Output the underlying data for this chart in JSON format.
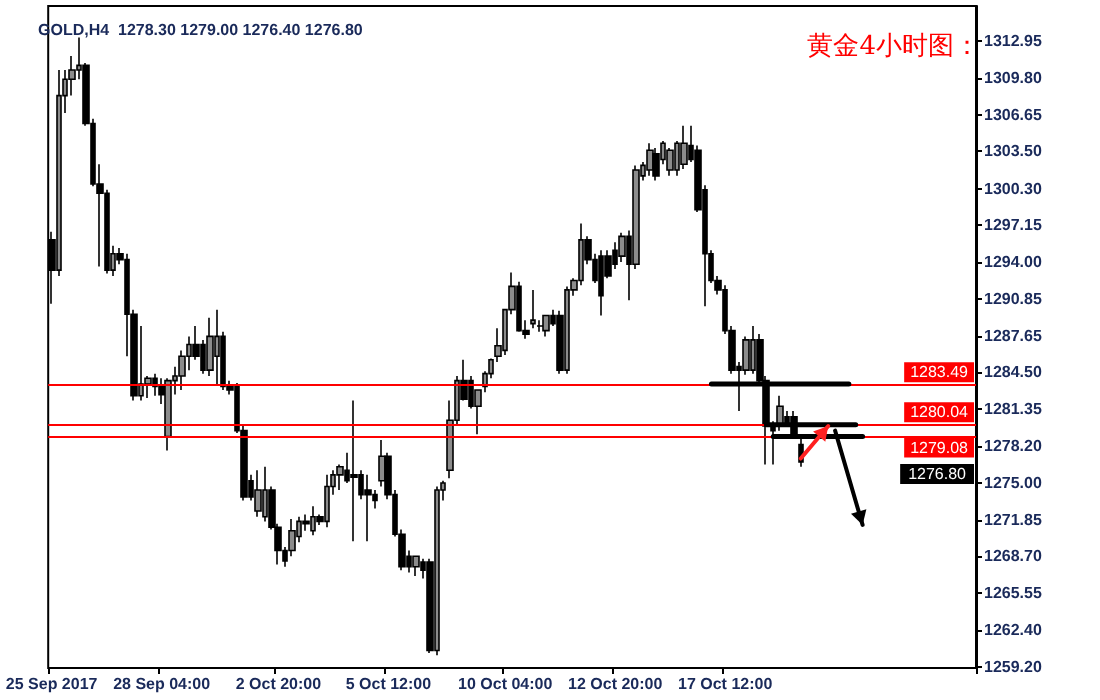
{
  "chart_data": {
    "type": "candlestick",
    "title": "黄金4小时图：",
    "subtitle": "GOLD,H4  1278.30 1279.00 1276.40 1276.80",
    "categories": [
      "25 Sep 2017",
      null,
      null,
      null,
      null,
      null,
      null,
      null,
      null,
      null,
      null,
      null,
      null,
      null,
      null,
      null,
      "28 Sep 04:00",
      null,
      null,
      null,
      null,
      null,
      null,
      null,
      null,
      null,
      null,
      null,
      null,
      null,
      null,
      null,
      null,
      "2 Oct 20:00",
      null,
      null,
      null,
      null,
      null,
      null,
      null,
      null,
      null,
      null,
      null,
      null,
      null,
      null,
      null,
      "5 Oct 12:00",
      null,
      null,
      null,
      null,
      null,
      null,
      null,
      null,
      null,
      null,
      null,
      null,
      null,
      null,
      null,
      null,
      "10 Oct 04:00",
      null,
      null,
      null,
      null,
      null,
      null,
      null,
      null,
      null,
      null,
      null,
      null,
      null,
      null,
      null,
      "12 Oct 20:00",
      null,
      null,
      null,
      null,
      null,
      null,
      null,
      null,
      null,
      null,
      null,
      null,
      null,
      null,
      null,
      "17 Oct 12:00",
      null,
      null,
      null,
      null,
      null,
      null,
      null,
      null,
      null,
      null,
      null,
      null,
      null,
      null,
      null,
      null,
      null,
      null,
      null,
      null,
      null,
      null,
      null,
      null,
      null,
      null,
      null,
      null,
      null,
      null,
      null,
      null,
      null,
      null,
      null,
      null
    ],
    "ohlc": [
      [
        1295.9,
        1296.6,
        1290.4,
        1293.3
      ],
      [
        1293.3,
        1310.5,
        1292.8,
        1308.3
      ],
      [
        1308.3,
        1310.5,
        1306.8,
        1309.7
      ],
      [
        1309.7,
        1311.7,
        1308.3,
        1310.5
      ],
      [
        1310.5,
        1313.3,
        1309.7,
        1310.9
      ],
      [
        1310.9,
        1311.1,
        1305.7,
        1305.9
      ],
      [
        1305.9,
        1306.3,
        1300.5,
        1300.7
      ],
      [
        1300.7,
        1302.4,
        1293.6,
        1299.9
      ],
      [
        1299.9,
        1300.2,
        1293.0,
        1293.3
      ],
      [
        1293.3,
        1295.4,
        1292.8,
        1294.7
      ],
      [
        1294.7,
        1295.2,
        1293.8,
        1294.2
      ],
      [
        1294.2,
        1294.7,
        1285.9,
        1289.5
      ],
      [
        1289.5,
        1289.9,
        1282.1,
        1282.5
      ],
      [
        1282.5,
        1288.5,
        1282.1,
        1283.5
      ],
      [
        1283.5,
        1284.2,
        1282.3,
        1284.0
      ],
      [
        1284.0,
        1284.4,
        1282.5,
        1283.3
      ],
      [
        1283.3,
        1284.0,
        1281.8,
        1282.6
      ],
      [
        1279.0,
        1284.0,
        1277.8,
        1283.8
      ],
      [
        1283.8,
        1285.0,
        1282.6,
        1284.2
      ],
      [
        1284.2,
        1286.4,
        1283.0,
        1285.9
      ],
      [
        1285.9,
        1287.6,
        1284.7,
        1286.9
      ],
      [
        1286.9,
        1288.5,
        1285.6,
        1285.9
      ],
      [
        1286.9,
        1287.3,
        1284.4,
        1284.7
      ],
      [
        1284.7,
        1289.2,
        1284.2,
        1287.6
      ],
      [
        1285.9,
        1289.9,
        1283.5,
        1287.6
      ],
      [
        1287.6,
        1288.0,
        1283.0,
        1283.3
      ],
      [
        1283.3,
        1283.8,
        1282.6,
        1283.0
      ],
      [
        1283.3,
        1283.6,
        1279.3,
        1279.5
      ],
      [
        1279.5,
        1279.9,
        1273.5,
        1273.8
      ],
      [
        1275.2,
        1275.7,
        1273.5,
        1273.8
      ],
      [
        1272.6,
        1276.1,
        1272.1,
        1274.4
      ],
      [
        1272.1,
        1276.4,
        1271.7,
        1274.4
      ],
      [
        1274.4,
        1274.7,
        1271.0,
        1271.2
      ],
      [
        1271.2,
        1271.5,
        1268.0,
        1269.2
      ],
      [
        1269.2,
        1269.5,
        1267.8,
        1268.3
      ],
      [
        1269.2,
        1271.9,
        1268.7,
        1270.9
      ],
      [
        1270.4,
        1272.1,
        1269.9,
        1271.7
      ],
      [
        1271.7,
        1272.3,
        1270.9,
        1271.5
      ],
      [
        1270.9,
        1273.0,
        1270.5,
        1272.1
      ],
      [
        1272.1,
        1272.3,
        1271.4,
        1271.7
      ],
      [
        1271.7,
        1275.7,
        1271.2,
        1274.7
      ],
      [
        1274.7,
        1276.1,
        1274.0,
        1275.7
      ],
      [
        1275.7,
        1276.6,
        1274.4,
        1276.4
      ],
      [
        1276.1,
        1277.6,
        1275.0,
        1275.2
      ],
      [
        1275.7,
        1282.1,
        1270.0,
        1275.5
      ],
      [
        1275.7,
        1276.1,
        1273.6,
        1274.0
      ],
      [
        1274.4,
        1275.7,
        1270.0,
        1274.0
      ],
      [
        1274.0,
        1274.4,
        1272.8,
        1273.5
      ],
      [
        1275.2,
        1278.7,
        1274.7,
        1277.3
      ],
      [
        1277.3,
        1277.6,
        1273.6,
        1274.0
      ],
      [
        1274.0,
        1274.4,
        1270.4,
        1270.6
      ],
      [
        1270.6,
        1271.0,
        1267.5,
        1267.8
      ],
      [
        1268.7,
        1269.2,
        1267.3,
        1267.8
      ],
      [
        1267.8,
        1268.7,
        1267.0,
        1268.7
      ],
      [
        1268.2,
        1268.5,
        1266.8,
        1267.5
      ],
      [
        1268.2,
        1268.5,
        1260.4,
        1260.6
      ],
      [
        1260.6,
        1274.7,
        1260.2,
        1274.4
      ],
      [
        1274.4,
        1275.2,
        1273.5,
        1275.0
      ],
      [
        1276.1,
        1282.1,
        1275.4,
        1280.4
      ],
      [
        1280.4,
        1284.2,
        1279.9,
        1283.8
      ],
      [
        1283.8,
        1285.6,
        1282.1,
        1282.2
      ],
      [
        1283.8,
        1284.2,
        1281.4,
        1281.6
      ],
      [
        1281.6,
        1283.0,
        1279.2,
        1283.0
      ],
      [
        1283.3,
        1284.6,
        1282.8,
        1284.4
      ],
      [
        1284.4,
        1285.7,
        1284.0,
        1285.6
      ],
      [
        1285.9,
        1288.3,
        1285.4,
        1286.8
      ],
      [
        1286.4,
        1289.9,
        1286.0,
        1289.9
      ],
      [
        1289.9,
        1293.1,
        1289.5,
        1291.9
      ],
      [
        1291.9,
        1292.3,
        1288.0,
        1288.1
      ],
      [
        1288.1,
        1289.0,
        1287.4,
        1287.8
      ],
      [
        1288.7,
        1291.6,
        1288.3,
        1289.0
      ],
      [
        1288.5,
        1289.0,
        1288.0,
        1288.5
      ],
      [
        1288.1,
        1289.4,
        1287.6,
        1289.4
      ],
      [
        1289.4,
        1289.9,
        1288.5,
        1288.7
      ],
      [
        1289.4,
        1289.8,
        1284.4,
        1284.7
      ],
      [
        1284.7,
        1291.9,
        1284.4,
        1291.6
      ],
      [
        1291.6,
        1292.6,
        1291.1,
        1292.4
      ],
      [
        1292.4,
        1297.3,
        1292.0,
        1295.9
      ],
      [
        1295.9,
        1296.2,
        1293.8,
        1294.2
      ],
      [
        1294.2,
        1294.7,
        1292.2,
        1292.4
      ],
      [
        1294.5,
        1295.0,
        1289.4,
        1291.1
      ],
      [
        1294.5,
        1295.0,
        1292.6,
        1292.8
      ],
      [
        1295.0,
        1295.7,
        1293.4,
        1293.8
      ],
      [
        1294.5,
        1296.5,
        1294.0,
        1296.2
      ],
      [
        1296.2,
        1296.7,
        1290.7,
        1293.8
      ],
      [
        1293.8,
        1302.3,
        1293.4,
        1301.9
      ],
      [
        1301.4,
        1302.6,
        1301.0,
        1302.3
      ],
      [
        1301.9,
        1304.2,
        1301.4,
        1303.6
      ],
      [
        1303.3,
        1303.8,
        1301.0,
        1301.4
      ],
      [
        1302.8,
        1304.4,
        1302.4,
        1304.2
      ],
      [
        1301.9,
        1303.8,
        1301.4,
        1303.6
      ],
      [
        1301.9,
        1304.4,
        1301.4,
        1304.2
      ],
      [
        1302.4,
        1305.7,
        1302.0,
        1304.2
      ],
      [
        1304.0,
        1305.7,
        1302.6,
        1302.8
      ],
      [
        1303.6,
        1304.0,
        1298.3,
        1298.5
      ],
      [
        1300.2,
        1300.6,
        1290.2,
        1294.7
      ],
      [
        1294.7,
        1295.0,
        1292.2,
        1292.4
      ],
      [
        1292.4,
        1292.8,
        1291.2,
        1291.6
      ],
      [
        1291.6,
        1292.0,
        1287.8,
        1288.1
      ],
      [
        1288.1,
        1288.5,
        1284.4,
        1284.7
      ],
      [
        1285.0,
        1285.4,
        1281.2,
        1284.7
      ],
      [
        1284.7,
        1287.6,
        1284.3,
        1287.3
      ],
      [
        1284.7,
        1288.5,
        1284.4,
        1287.3
      ],
      [
        1287.3,
        1287.8,
        1283.5,
        1283.8
      ],
      [
        1283.8,
        1284.2,
        1276.6,
        1279.9
      ],
      [
        1279.9,
        1280.3,
        1276.6,
        1279.5
      ],
      [
        1279.9,
        1282.5,
        1279.5,
        1281.6
      ],
      [
        1280.7,
        1281.2,
        1279.9,
        1279.9
      ],
      [
        1280.7,
        1281.2,
        1278.8,
        1279.0
      ],
      [
        1278.3,
        1279.0,
        1276.4,
        1276.8
      ],
      null,
      null,
      null,
      null,
      null,
      null,
      null,
      null,
      null,
      null,
      null,
      null,
      null,
      null,
      null,
      null,
      null,
      null,
      null,
      null,
      null,
      null,
      null,
      null,
      null
    ],
    "ylim": [
      1259.1,
      1316.0
    ],
    "yticks": [
      {
        "value": 1259.2,
        "label": "1259.20"
      },
      {
        "value": 1262.4,
        "label": "1262.40"
      },
      1265.55,
      {
        "value": 1268.7,
        "label": "1268.70"
      },
      1271.85,
      {
        "value": 1275,
        "label": "1275.00"
      },
      {
        "value": 1278.2,
        "label": "1278.20"
      },
      1281.35,
      {
        "value": 1284.5,
        "label": "1284.50"
      },
      1287.65,
      1290.85,
      {
        "value": 1294,
        "label": "1294.00"
      },
      1297.15,
      {
        "value": 1300.3,
        "label": "1300.30"
      },
      {
        "value": 1303.5,
        "label": "1303.50"
      },
      1306.65,
      {
        "value": 1309.8,
        "label": "1309.80"
      },
      1312.95
    ],
    "ref_lines": [
      {
        "axis": "y",
        "value": 1283.49,
        "label": "1283.49",
        "color": "#ff0000"
      },
      {
        "axis": "y",
        "value": 1280.04,
        "label": "1280.04",
        "color": "#ff0000"
      },
      {
        "axis": "y",
        "value": 1279.08,
        "label": "1279.08",
        "color": "#ff0000"
      }
    ],
    "annotations": [
      "1276.80"
    ],
    "grid": false
  }
}
